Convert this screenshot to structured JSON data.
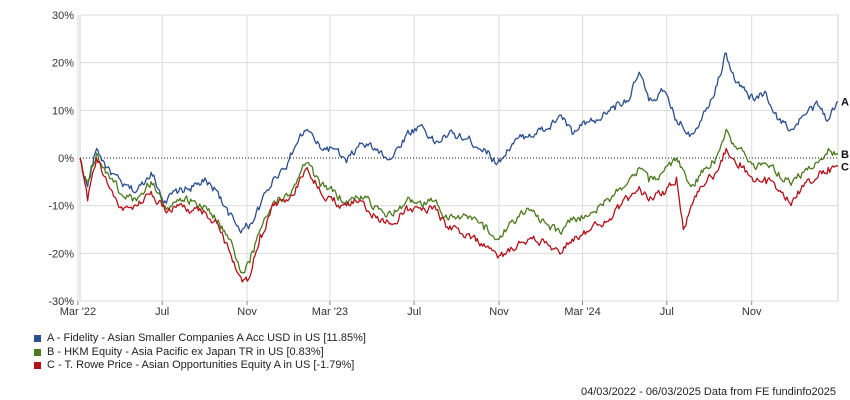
{
  "chart_data": {
    "type": "line",
    "ylim": [
      -30,
      30
    ],
    "y_ticks": [
      "30%",
      "20%",
      "10%",
      "0%",
      "-10%",
      "-20%",
      "-30%"
    ],
    "y_tick_values": [
      30,
      20,
      10,
      0,
      -10,
      -20,
      -30
    ],
    "x_ticks": [
      "Mar '22",
      "Jul",
      "Nov",
      "Mar '23",
      "Jul",
      "Nov",
      "Mar '24",
      "Jul",
      "Nov"
    ],
    "x_tick_dates": [
      "2022-03-01",
      "2022-07-01",
      "2022-11-01",
      "2023-03-01",
      "2023-07-01",
      "2023-11-01",
      "2024-03-01",
      "2024-07-01",
      "2024-11-01"
    ],
    "x_range": [
      "2022-03-04",
      "2025-03-06"
    ],
    "grid": true,
    "zero_line": "dotted",
    "series": [
      {
        "name": "A - Fidelity - Asian Smaller Companies A Acc USD in US [11.85%]",
        "end_label": "A",
        "color": "#2b4f8e",
        "points": [
          [
            "2022-03-04",
            0
          ],
          [
            "2022-03-15",
            -6
          ],
          [
            "2022-03-28",
            2
          ],
          [
            "2022-04-12",
            -2
          ],
          [
            "2022-05-05",
            -6
          ],
          [
            "2022-05-25",
            -7
          ],
          [
            "2022-06-15",
            -3
          ],
          [
            "2022-07-05",
            -9
          ],
          [
            "2022-07-25",
            -7
          ],
          [
            "2022-08-15",
            -6
          ],
          [
            "2022-08-30",
            -5
          ],
          [
            "2022-09-20",
            -7
          ],
          [
            "2022-10-05",
            -12
          ],
          [
            "2022-10-25",
            -15
          ],
          [
            "2022-11-05",
            -14
          ],
          [
            "2022-11-20",
            -10
          ],
          [
            "2022-12-10",
            -4
          ],
          [
            "2022-12-30",
            -1
          ],
          [
            "2023-01-15",
            4
          ],
          [
            "2023-01-27",
            6
          ],
          [
            "2023-02-15",
            2
          ],
          [
            "2023-03-05",
            2
          ],
          [
            "2023-03-25",
            -1
          ],
          [
            "2023-04-15",
            3
          ],
          [
            "2023-05-05",
            2
          ],
          [
            "2023-05-30",
            0
          ],
          [
            "2023-06-20",
            5
          ],
          [
            "2023-07-12",
            7
          ],
          [
            "2023-07-31",
            3
          ],
          [
            "2023-08-20",
            5
          ],
          [
            "2023-09-15",
            4
          ],
          [
            "2023-10-10",
            2
          ],
          [
            "2023-10-30",
            -1
          ],
          [
            "2023-11-20",
            3
          ],
          [
            "2023-12-15",
            5
          ],
          [
            "2024-01-10",
            6
          ],
          [
            "2024-01-30",
            9
          ],
          [
            "2024-02-15",
            5
          ],
          [
            "2024-03-05",
            7
          ],
          [
            "2024-03-25",
            8
          ],
          [
            "2024-04-15",
            11
          ],
          [
            "2024-05-10",
            13
          ],
          [
            "2024-05-22",
            18
          ],
          [
            "2024-06-05",
            12
          ],
          [
            "2024-06-25",
            14
          ],
          [
            "2024-07-15",
            8
          ],
          [
            "2024-08-05",
            5
          ],
          [
            "2024-08-22",
            9
          ],
          [
            "2024-09-10",
            15
          ],
          [
            "2024-09-25",
            22
          ],
          [
            "2024-10-03",
            18
          ],
          [
            "2024-10-15",
            15
          ],
          [
            "2024-11-05",
            12
          ],
          [
            "2024-11-20",
            14
          ],
          [
            "2024-12-10",
            8
          ],
          [
            "2024-12-30",
            6
          ],
          [
            "2025-01-15",
            9
          ],
          [
            "2025-02-05",
            11
          ],
          [
            "2025-02-20",
            8
          ],
          [
            "2025-03-06",
            11.85
          ]
        ]
      },
      {
        "name": "B - HKM Equity - Asia Pacific ex Japan TR in US [0.83%]",
        "end_label": "B",
        "color": "#4d7a1f",
        "points": [
          [
            "2022-03-04",
            0
          ],
          [
            "2022-03-15",
            -5
          ],
          [
            "2022-03-28",
            1
          ],
          [
            "2022-04-12",
            -3
          ],
          [
            "2022-05-05",
            -8
          ],
          [
            "2022-05-25",
            -9
          ],
          [
            "2022-06-15",
            -5
          ],
          [
            "2022-07-05",
            -10
          ],
          [
            "2022-07-25",
            -9
          ],
          [
            "2022-08-15",
            -9
          ],
          [
            "2022-08-30",
            -10
          ],
          [
            "2022-09-20",
            -13
          ],
          [
            "2022-10-05",
            -17
          ],
          [
            "2022-10-25",
            -24
          ],
          [
            "2022-11-05",
            -22
          ],
          [
            "2022-11-20",
            -15
          ],
          [
            "2022-12-10",
            -9
          ],
          [
            "2022-12-30",
            -8
          ],
          [
            "2023-01-15",
            -4
          ],
          [
            "2023-01-27",
            -1
          ],
          [
            "2023-02-15",
            -6
          ],
          [
            "2023-03-05",
            -7
          ],
          [
            "2023-03-25",
            -9
          ],
          [
            "2023-04-15",
            -8
          ],
          [
            "2023-05-05",
            -10
          ],
          [
            "2023-05-30",
            -12
          ],
          [
            "2023-06-20",
            -9
          ],
          [
            "2023-07-12",
            -10
          ],
          [
            "2023-07-31",
            -9
          ],
          [
            "2023-08-20",
            -13
          ],
          [
            "2023-09-15",
            -12
          ],
          [
            "2023-10-10",
            -15
          ],
          [
            "2023-10-30",
            -17
          ],
          [
            "2023-11-20",
            -13
          ],
          [
            "2023-12-15",
            -11
          ],
          [
            "2024-01-10",
            -14
          ],
          [
            "2024-01-30",
            -16
          ],
          [
            "2024-02-15",
            -13
          ],
          [
            "2024-03-05",
            -12
          ],
          [
            "2024-03-25",
            -10
          ],
          [
            "2024-04-15",
            -8
          ],
          [
            "2024-05-10",
            -4
          ],
          [
            "2024-05-22",
            -2
          ],
          [
            "2024-06-05",
            -5
          ],
          [
            "2024-06-25",
            -3
          ],
          [
            "2024-07-15",
            0
          ],
          [
            "2024-08-05",
            -6
          ],
          [
            "2024-08-22",
            -3
          ],
          [
            "2024-09-10",
            0
          ],
          [
            "2024-09-25",
            6
          ],
          [
            "2024-10-03",
            3
          ],
          [
            "2024-10-15",
            2
          ],
          [
            "2024-11-05",
            -2
          ],
          [
            "2024-11-20",
            -1
          ],
          [
            "2024-12-10",
            -3
          ],
          [
            "2024-12-30",
            -5
          ],
          [
            "2025-01-15",
            -3
          ],
          [
            "2025-02-05",
            -1
          ],
          [
            "2025-02-20",
            2
          ],
          [
            "2025-03-06",
            0.83
          ]
        ]
      },
      {
        "name": "C - T. Rowe Price - Asian Opportunities Equity A in US [-1.79%]",
        "end_label": "C",
        "color": "#b3121b",
        "points": [
          [
            "2022-03-04",
            0
          ],
          [
            "2022-03-15",
            -9
          ],
          [
            "2022-03-28",
            0
          ],
          [
            "2022-04-12",
            -5
          ],
          [
            "2022-05-05",
            -11
          ],
          [
            "2022-05-25",
            -10
          ],
          [
            "2022-06-15",
            -7
          ],
          [
            "2022-07-05",
            -11
          ],
          [
            "2022-07-25",
            -10
          ],
          [
            "2022-08-15",
            -11
          ],
          [
            "2022-08-30",
            -11
          ],
          [
            "2022-09-20",
            -14
          ],
          [
            "2022-10-05",
            -19
          ],
          [
            "2022-10-25",
            -26
          ],
          [
            "2022-11-05",
            -25
          ],
          [
            "2022-11-20",
            -16
          ],
          [
            "2022-12-10",
            -10
          ],
          [
            "2022-12-30",
            -9
          ],
          [
            "2023-01-15",
            -5
          ],
          [
            "2023-01-27",
            -2
          ],
          [
            "2023-02-15",
            -7
          ],
          [
            "2023-03-05",
            -9
          ],
          [
            "2023-03-25",
            -10
          ],
          [
            "2023-04-15",
            -9
          ],
          [
            "2023-05-05",
            -12
          ],
          [
            "2023-05-30",
            -14
          ],
          [
            "2023-06-20",
            -10
          ],
          [
            "2023-07-12",
            -11
          ],
          [
            "2023-07-31",
            -10
          ],
          [
            "2023-08-20",
            -15
          ],
          [
            "2023-09-15",
            -16
          ],
          [
            "2023-10-10",
            -18
          ],
          [
            "2023-10-30",
            -21
          ],
          [
            "2023-11-20",
            -19
          ],
          [
            "2023-12-15",
            -17
          ],
          [
            "2024-01-10",
            -18
          ],
          [
            "2024-01-30",
            -20
          ],
          [
            "2024-02-15",
            -17
          ],
          [
            "2024-03-05",
            -16
          ],
          [
            "2024-03-25",
            -14
          ],
          [
            "2024-04-15",
            -12
          ],
          [
            "2024-05-10",
            -8
          ],
          [
            "2024-05-22",
            -6
          ],
          [
            "2024-06-05",
            -9
          ],
          [
            "2024-06-25",
            -7
          ],
          [
            "2024-07-15",
            -4
          ],
          [
            "2024-07-25",
            -15
          ],
          [
            "2024-08-05",
            -10
          ],
          [
            "2024-08-22",
            -6
          ],
          [
            "2024-09-10",
            -3
          ],
          [
            "2024-09-25",
            2
          ],
          [
            "2024-10-03",
            0
          ],
          [
            "2024-10-15",
            -1
          ],
          [
            "2024-11-05",
            -5
          ],
          [
            "2024-11-20",
            -4
          ],
          [
            "2024-12-10",
            -7
          ],
          [
            "2024-12-30",
            -9
          ],
          [
            "2025-01-15",
            -6
          ],
          [
            "2025-02-05",
            -4
          ],
          [
            "2025-02-20",
            -2
          ],
          [
            "2025-03-06",
            -1.79
          ]
        ]
      }
    ],
    "legend_position": "bottom-left"
  },
  "footer_text": "04/03/2022 - 06/03/2025 Data from FE fundinfo2025"
}
